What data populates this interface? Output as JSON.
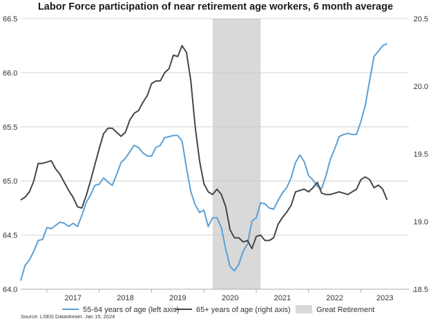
{
  "chart_data": {
    "type": "line",
    "title": "Labor Force participation of near retirement age workers, 6 month average",
    "source": "Source: LSEG Datastream. Jan 15, 2024",
    "x_tick_labels": [
      "2017",
      "2018",
      "2019",
      "2020",
      "2021",
      "2022",
      "2023"
    ],
    "x_range": [
      "2016-07",
      "2023-12"
    ],
    "left_axis": {
      "ylim": [
        64.0,
        66.5
      ],
      "ticks": [
        "64.0",
        "64.5",
        "65.0",
        "65.5",
        "66.0",
        "66.5"
      ]
    },
    "right_axis": {
      "ylim": [
        18.5,
        20.5
      ],
      "ticks": [
        "18.5",
        "19.0",
        "19.5",
        "20.0",
        "20.5"
      ]
    },
    "grid": true,
    "shaded_period": {
      "name": "Great Retirement",
      "start": "2020-03",
      "end": "2021-02",
      "color": "#d9d9d9"
    },
    "series": [
      {
        "name": "55-64 years of age (left axis)",
        "axis": "left",
        "color": "#5b9fd4",
        "points": [
          [
            "2016-07",
            64.08
          ],
          [
            "2016-08",
            64.22
          ],
          [
            "2016-09",
            64.27
          ],
          [
            "2016-10",
            64.35
          ],
          [
            "2016-11",
            64.45
          ],
          [
            "2016-12",
            64.46
          ],
          [
            "2017-01",
            64.57
          ],
          [
            "2017-02",
            64.56
          ],
          [
            "2017-03",
            64.59
          ],
          [
            "2017-04",
            64.62
          ],
          [
            "2017-05",
            64.61
          ],
          [
            "2017-06",
            64.58
          ],
          [
            "2017-07",
            64.61
          ],
          [
            "2017-08",
            64.58
          ],
          [
            "2017-09",
            64.68
          ],
          [
            "2017-10",
            64.8
          ],
          [
            "2017-11",
            64.87
          ],
          [
            "2017-12",
            64.96
          ],
          [
            "2018-01",
            64.97
          ],
          [
            "2018-02",
            65.03
          ],
          [
            "2018-03",
            64.99
          ],
          [
            "2018-04",
            64.96
          ],
          [
            "2018-05",
            65.06
          ],
          [
            "2018-06",
            65.17
          ],
          [
            "2018-07",
            65.21
          ],
          [
            "2018-08",
            65.27
          ],
          [
            "2018-09",
            65.33
          ],
          [
            "2018-10",
            65.31
          ],
          [
            "2018-11",
            65.26
          ],
          [
            "2018-12",
            65.23
          ],
          [
            "2019-01",
            65.23
          ],
          [
            "2019-02",
            65.31
          ],
          [
            "2019-03",
            65.33
          ],
          [
            "2019-04",
            65.4
          ],
          [
            "2019-05",
            65.41
          ],
          [
            "2019-06",
            65.42
          ],
          [
            "2019-07",
            65.42
          ],
          [
            "2019-08",
            65.37
          ],
          [
            "2019-09",
            65.12
          ],
          [
            "2019-10",
            64.9
          ],
          [
            "2019-11",
            64.78
          ],
          [
            "2019-12",
            64.71
          ],
          [
            "2020-01",
            64.73
          ],
          [
            "2020-02",
            64.58
          ],
          [
            "2020-03",
            64.66
          ],
          [
            "2020-04",
            64.66
          ],
          [
            "2020-05",
            64.57
          ],
          [
            "2020-06",
            64.37
          ],
          [
            "2020-07",
            64.21
          ],
          [
            "2020-08",
            64.17
          ],
          [
            "2020-09",
            64.23
          ],
          [
            "2020-10",
            64.35
          ],
          [
            "2020-11",
            64.42
          ],
          [
            "2020-12",
            64.63
          ],
          [
            "2021-01",
            64.66
          ],
          [
            "2021-02",
            64.8
          ],
          [
            "2021-03",
            64.79
          ],
          [
            "2021-04",
            64.75
          ],
          [
            "2021-05",
            64.74
          ],
          [
            "2021-06",
            64.82
          ],
          [
            "2021-07",
            64.89
          ],
          [
            "2021-08",
            64.94
          ],
          [
            "2021-09",
            65.03
          ],
          [
            "2021-10",
            65.17
          ],
          [
            "2021-11",
            65.24
          ],
          [
            "2021-12",
            65.18
          ],
          [
            "2022-01",
            65.05
          ],
          [
            "2022-02",
            65.01
          ],
          [
            "2022-03",
            64.95
          ],
          [
            "2022-04",
            64.93
          ],
          [
            "2022-05",
            65.05
          ],
          [
            "2022-06",
            65.2
          ],
          [
            "2022-07",
            65.3
          ],
          [
            "2022-08",
            65.41
          ],
          [
            "2022-09",
            65.43
          ],
          [
            "2022-10",
            65.44
          ],
          [
            "2022-11",
            65.43
          ],
          [
            "2022-12",
            65.43
          ],
          [
            "2023-01",
            65.55
          ],
          [
            "2023-02",
            65.7
          ],
          [
            "2023-03",
            65.93
          ],
          [
            "2023-04",
            66.15
          ],
          [
            "2023-05",
            66.2
          ],
          [
            "2023-06",
            66.25
          ],
          [
            "2023-07",
            66.27
          ]
        ]
      },
      {
        "name": "65+ years of age (right axis)",
        "axis": "right",
        "color": "#444444",
        "points": [
          [
            "2016-07",
            19.16
          ],
          [
            "2016-08",
            19.18
          ],
          [
            "2016-09",
            19.22
          ],
          [
            "2016-10",
            19.3
          ],
          [
            "2016-11",
            19.43
          ],
          [
            "2016-12",
            19.43
          ],
          [
            "2017-01",
            19.44
          ],
          [
            "2017-02",
            19.45
          ],
          [
            "2017-03",
            19.39
          ],
          [
            "2017-04",
            19.35
          ],
          [
            "2017-05",
            19.29
          ],
          [
            "2017-06",
            19.23
          ],
          [
            "2017-07",
            19.18
          ],
          [
            "2017-08",
            19.11
          ],
          [
            "2017-09",
            19.1
          ],
          [
            "2017-10",
            19.19
          ],
          [
            "2017-11",
            19.3
          ],
          [
            "2017-12",
            19.42
          ],
          [
            "2018-01",
            19.54
          ],
          [
            "2018-02",
            19.65
          ],
          [
            "2018-03",
            19.69
          ],
          [
            "2018-04",
            19.69
          ],
          [
            "2018-05",
            19.66
          ],
          [
            "2018-06",
            19.63
          ],
          [
            "2018-07",
            19.66
          ],
          [
            "2018-08",
            19.75
          ],
          [
            "2018-09",
            19.8
          ],
          [
            "2018-10",
            19.82
          ],
          [
            "2018-11",
            19.88
          ],
          [
            "2018-12",
            19.93
          ],
          [
            "2019-01",
            20.02
          ],
          [
            "2019-02",
            20.04
          ],
          [
            "2019-03",
            20.04
          ],
          [
            "2019-04",
            20.1
          ],
          [
            "2019-05",
            20.13
          ],
          [
            "2019-06",
            20.23
          ],
          [
            "2019-07",
            20.22
          ],
          [
            "2019-08",
            20.3
          ],
          [
            "2019-09",
            20.25
          ],
          [
            "2019-10",
            20.04
          ],
          [
            "2019-11",
            19.7
          ],
          [
            "2019-12",
            19.45
          ],
          [
            "2020-01",
            19.28
          ],
          [
            "2020-02",
            19.22
          ],
          [
            "2020-03",
            19.2
          ],
          [
            "2020-04",
            19.24
          ],
          [
            "2020-05",
            19.2
          ],
          [
            "2020-06",
            19.11
          ],
          [
            "2020-07",
            18.94
          ],
          [
            "2020-08",
            18.88
          ],
          [
            "2020-09",
            18.88
          ],
          [
            "2020-10",
            18.85
          ],
          [
            "2020-11",
            18.86
          ],
          [
            "2020-12",
            18.8
          ],
          [
            "2021-01",
            18.89
          ],
          [
            "2021-02",
            18.9
          ],
          [
            "2021-03",
            18.86
          ],
          [
            "2021-04",
            18.86
          ],
          [
            "2021-05",
            18.88
          ],
          [
            "2021-06",
            18.98
          ],
          [
            "2021-07",
            19.03
          ],
          [
            "2021-08",
            19.07
          ],
          [
            "2021-09",
            19.12
          ],
          [
            "2021-10",
            19.22
          ],
          [
            "2021-11",
            19.23
          ],
          [
            "2021-12",
            19.24
          ],
          [
            "2022-01",
            19.22
          ],
          [
            "2022-02",
            19.25
          ],
          [
            "2022-03",
            19.29
          ],
          [
            "2022-04",
            19.21
          ],
          [
            "2022-05",
            19.2
          ],
          [
            "2022-06",
            19.2
          ],
          [
            "2022-07",
            19.21
          ],
          [
            "2022-08",
            19.22
          ],
          [
            "2022-09",
            19.21
          ],
          [
            "2022-10",
            19.2
          ],
          [
            "2022-11",
            19.22
          ],
          [
            "2022-12",
            19.24
          ],
          [
            "2023-01",
            19.31
          ],
          [
            "2023-02",
            19.33
          ],
          [
            "2023-03",
            19.31
          ],
          [
            "2023-04",
            19.25
          ],
          [
            "2023-05",
            19.27
          ],
          [
            "2023-06",
            19.24
          ],
          [
            "2023-07",
            19.16
          ]
        ]
      }
    ],
    "legend": {
      "placement": "bottom",
      "items": [
        {
          "label": "55-64 years of age (left axis)",
          "kind": "line",
          "color": "#5b9fd4"
        },
        {
          "label": "65+ years of age (right axis)",
          "kind": "line",
          "color": "#444444"
        },
        {
          "label": "Great Retirement",
          "kind": "area",
          "color": "#d9d9d9"
        }
      ]
    }
  }
}
